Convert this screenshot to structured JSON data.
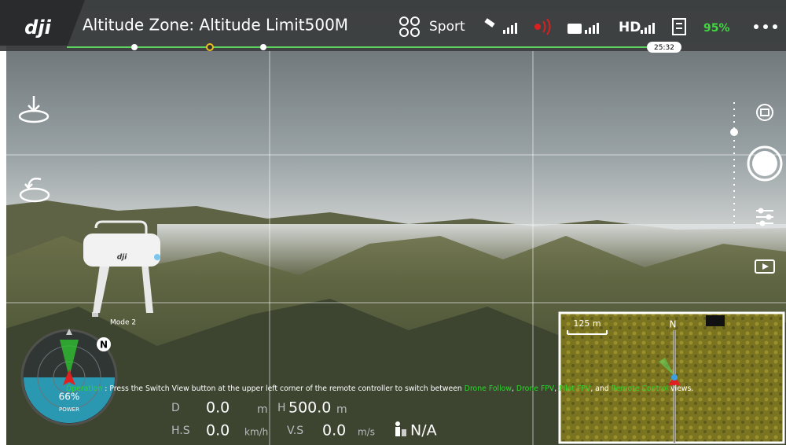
{
  "header": {
    "logo": "dji",
    "title": "Altitude Zone: Altitude Limit500M",
    "mode": "Sport",
    "hd": "HD",
    "battery": "95%",
    "time": "25:32"
  },
  "controller": {
    "mode_label": "Mode 2"
  },
  "radar": {
    "north": "N",
    "power_value": "66%",
    "power_label": "POWER"
  },
  "hint": {
    "segments": [
      {
        "text": "Operation",
        "color": "#2bd62b"
      },
      {
        "text": " : Press the Switch View button at the upper left corner of the remote controller to switch between ",
        "color": "#ffffff"
      },
      {
        "text": "Drone Follow",
        "color": "#2bd62b"
      },
      {
        "text": ", ",
        "color": "#ffffff"
      },
      {
        "text": "Drone FPV",
        "color": "#2bd62b"
      },
      {
        "text": ", ",
        "color": "#ffffff"
      },
      {
        "text": "Pilot FPV",
        "color": "#2bd62b"
      },
      {
        "text": ", and ",
        "color": "#ffffff"
      },
      {
        "text": "Remote Control",
        "color": "#2bd62b"
      },
      {
        "text": " views.",
        "color": "#ffffff"
      }
    ]
  },
  "telemetry": {
    "d_label": "D",
    "d_value": "0.0",
    "d_unit": "m",
    "h_label": "H",
    "h_value": "500.0",
    "h_unit": "m",
    "hs_label": "H.S",
    "hs_value": "0.0",
    "hs_unit": "km/h",
    "vs_label": "V.S",
    "vs_value": "0.0",
    "vs_unit": "m/s",
    "home_dist": "N/A"
  },
  "map": {
    "scale": "125 m",
    "north": "N"
  }
}
